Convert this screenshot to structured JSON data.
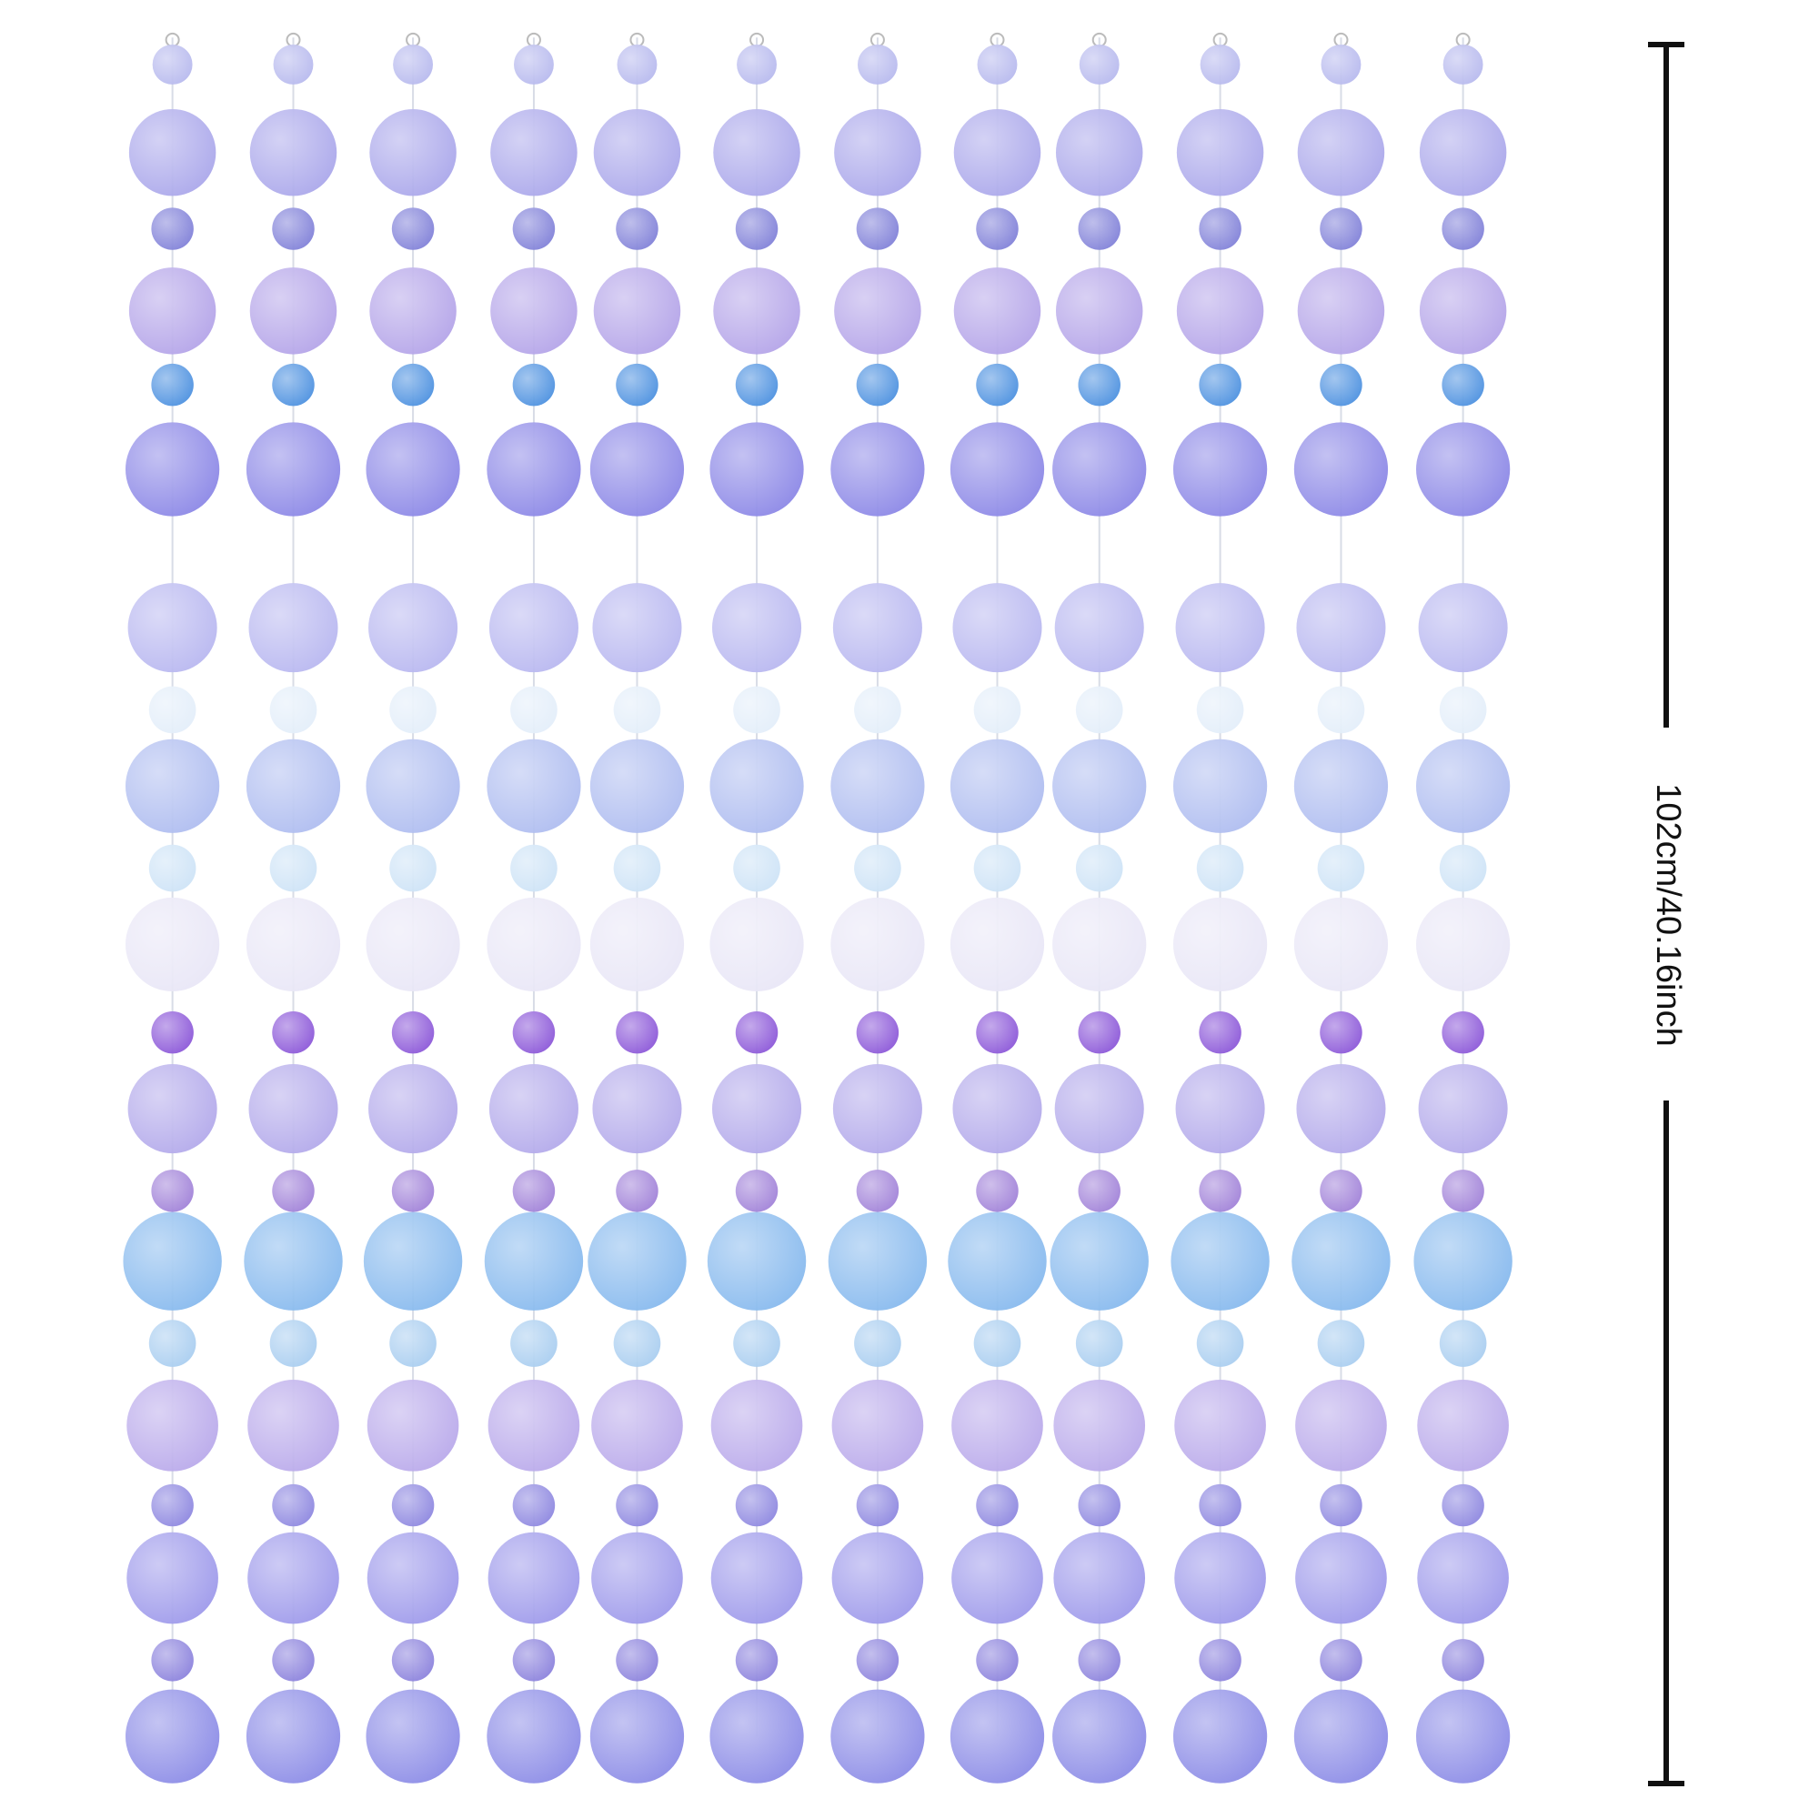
{
  "dimension_label": "102cm/40.16inch"
}
